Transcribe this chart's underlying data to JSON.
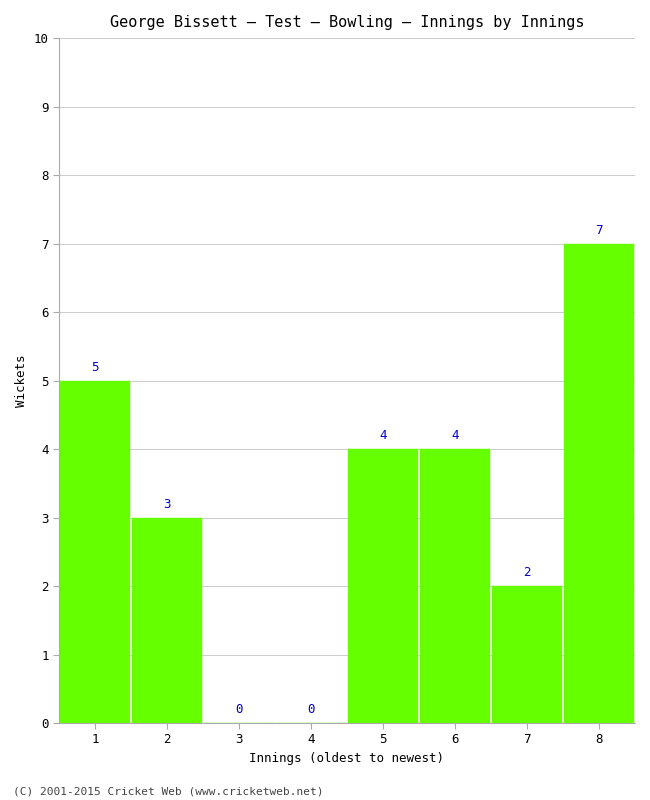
{
  "title": "George Bissett – Test – Bowling – Innings by Innings",
  "xlabel": "Innings (oldest to newest)",
  "ylabel": "Wickets",
  "categories": [
    "1",
    "2",
    "3",
    "4",
    "5",
    "6",
    "7",
    "8"
  ],
  "values": [
    5,
    3,
    0,
    0,
    4,
    4,
    2,
    7
  ],
  "bar_color": "#66ff00",
  "bar_edge_color": "#66ff00",
  "ylim": [
    0,
    10
  ],
  "yticks": [
    0,
    1,
    2,
    3,
    4,
    5,
    6,
    7,
    8,
    9,
    10
  ],
  "label_color": "#0000cc",
  "label_fontsize": 9,
  "title_fontsize": 11,
  "axis_label_fontsize": 9,
  "tick_fontsize": 9,
  "background_color": "#ffffff",
  "footer": "(C) 2001-2015 Cricket Web (www.cricketweb.net)",
  "footer_fontsize": 8,
  "bar_width": 0.97,
  "grid_color": "#cccccc",
  "grid_linewidth": 0.7
}
